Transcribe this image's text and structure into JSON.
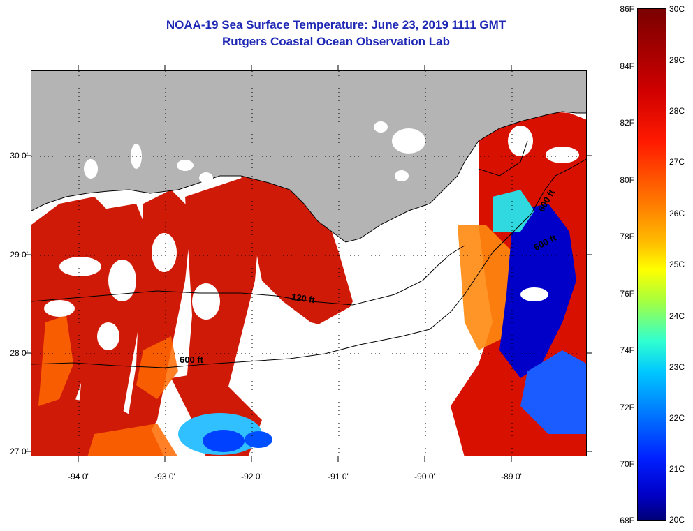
{
  "title": {
    "line1": "NOAA-19 Sea Surface Temperature:  June 23, 2019 1111 GMT",
    "line2": "Rutgers Coastal Ocean Observation Lab"
  },
  "colors": {
    "title": "#1e28b4",
    "land": "#b4b4b4",
    "no_data": "#ffffff",
    "warm": "#d01000",
    "cold": "#0000c8"
  },
  "axes": {
    "latitude_labels": [
      "30 0'",
      "29 0'",
      "28 0'",
      "27 0'"
    ],
    "longitude_labels": [
      "-94 0'",
      "-93 0'",
      "-92 0'",
      "-91 0'",
      "-90 0'",
      "-89 0'"
    ]
  },
  "contours": {
    "label_120": "120 ft",
    "label_600_west": "600 ft",
    "label_600_east": "600 ft",
    "label_600_ne": "600 ft"
  },
  "colorbar": {
    "fahrenheit": [
      "86F",
      "84F",
      "82F",
      "80F",
      "78F",
      "76F",
      "74F",
      "72F",
      "70F",
      "68F"
    ],
    "celsius": [
      "30C",
      "29C",
      "28C",
      "27C",
      "26C",
      "25C",
      "24C",
      "23C",
      "22C",
      "21C",
      "20C"
    ]
  }
}
